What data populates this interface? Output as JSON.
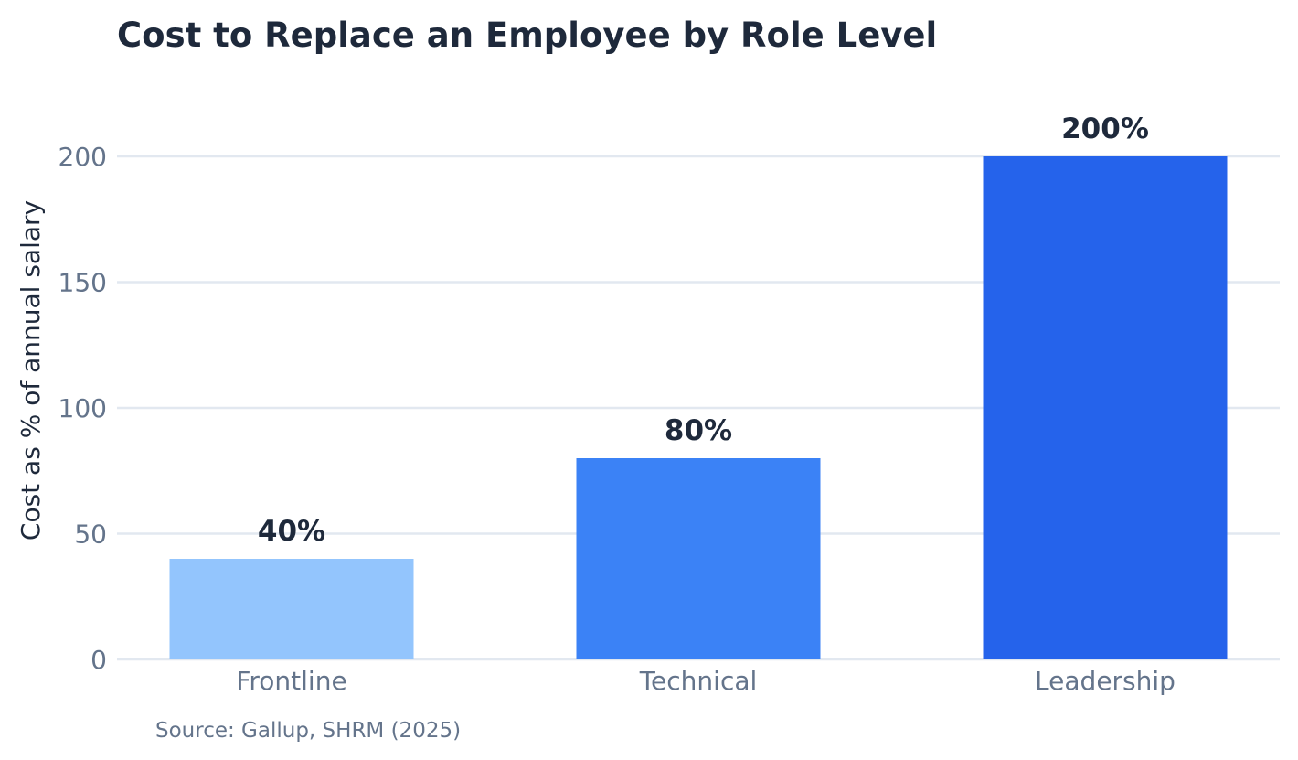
{
  "chart_data": {
    "type": "bar",
    "title": "Cost to Replace an Employee by Role Level",
    "ylabel": "Cost as % of annual salary",
    "xlabel": "",
    "categories": [
      "Frontline",
      "Technical",
      "Leadership"
    ],
    "values": [
      40,
      80,
      200
    ],
    "data_labels": [
      "40%",
      "80%",
      "200%"
    ],
    "bar_colors": [
      "#93c5fd",
      "#3b82f6",
      "#2563eb"
    ],
    "ylim": [
      0,
      220
    ],
    "yticks": [
      0,
      50,
      100,
      150,
      200
    ],
    "grid": true,
    "gridline_color": "#e2e8f0",
    "source": "Source: Gallup, SHRM (2025)"
  }
}
